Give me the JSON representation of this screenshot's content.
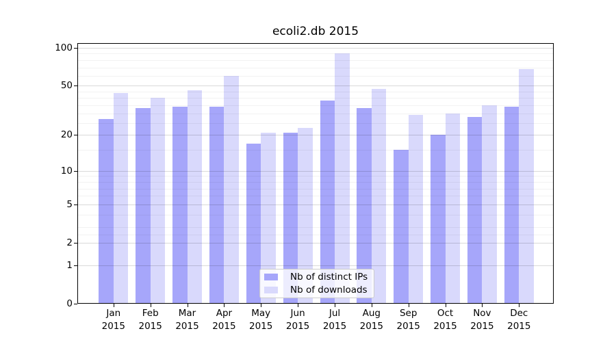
{
  "chart_data": {
    "type": "bar",
    "title": "ecoli2.db 2015",
    "categories": [
      "Jan",
      "Feb",
      "Mar",
      "Apr",
      "May",
      "Jun",
      "Jul",
      "Aug",
      "Sep",
      "Oct",
      "Nov",
      "Dec"
    ],
    "xtick_year": "2015",
    "series": [
      {
        "name": "Nb of distinct IPs",
        "color": "#a6a6fa",
        "values": [
          27,
          33,
          34,
          34,
          17,
          21,
          38,
          33,
          15,
          20,
          28,
          34
        ]
      },
      {
        "name": "Nb of downloads",
        "color": "#d9d9fc",
        "values": [
          44,
          40,
          46,
          60,
          21,
          23,
          91,
          47,
          29,
          30,
          35,
          68
        ]
      }
    ],
    "xlabel": "",
    "ylabel": "",
    "yscale": "log1p",
    "ylim": [
      0,
      110
    ],
    "yticks": [
      0,
      1,
      2,
      5,
      10,
      20,
      50,
      100
    ],
    "yminorticks": [
      2.5,
      3,
      4,
      6,
      7,
      8,
      9,
      15,
      25,
      30,
      35,
      40,
      45,
      60,
      70,
      80,
      90
    ],
    "grid": true,
    "legend_position": "lower center",
    "background_color": "#ffffff"
  }
}
